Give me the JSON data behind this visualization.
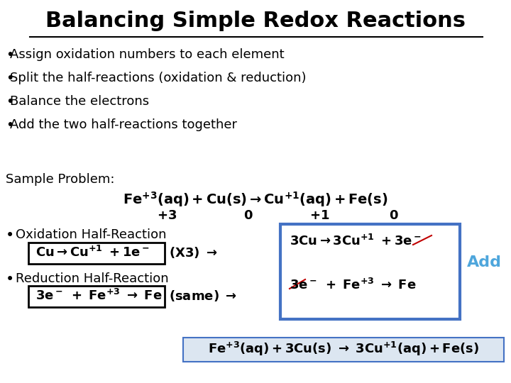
{
  "title": "Balancing Simple Redox Reactions",
  "bg_color": "#ffffff",
  "title_color": "#000000",
  "title_fontsize": 22,
  "bullets": [
    "Assign oxidation numbers to each element",
    "Split the half-reactions (oxidation & reduction)",
    "Balance the electrons",
    "Add the two half-reactions together"
  ],
  "bullet_fontsize": 13,
  "sample_label": "Sample Problem:",
  "oxidation_label": "Oxidation Half-Reaction",
  "oxidation_eq": "Cu → Cu$^{+1}$ +1e⁻",
  "oxidation_suffix": " (X3) →",
  "reduction_label": "Reduction Half-Reaction",
  "reduction_eq": "3e⁻ + Fe$^{+3}$ → Fe",
  "reduction_suffix": " (same) →",
  "box_right_line1": "3Cu → 3Cu$^{+1}$ +3e⁻",
  "box_right_line2": "3e⁻ + Fe$^{+3}$ → Fe",
  "add_label": "Add",
  "add_color": "#4ea6dc",
  "final_eq": "Fe$^{+3}$(aq) + 3Cu(s)  →  3Cu$^{+1}$(aq) + Fe(s)",
  "box_border_color": "#000000",
  "box_right_border_color": "#4472c4",
  "final_box_color": "#dce6f1"
}
